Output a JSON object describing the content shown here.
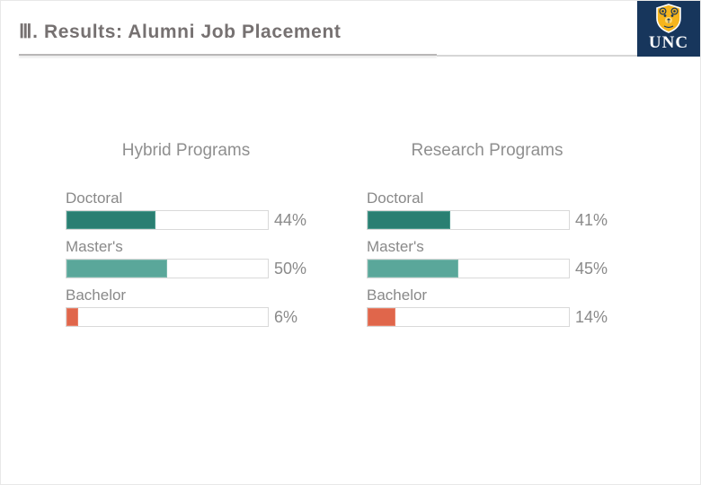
{
  "header": {
    "title": "Ⅲ. Results: Alumni Job Placement",
    "logo": {
      "wordmark": "UNC",
      "bear_icon": "unc-bear-shield-icon",
      "navy": "#17365c",
      "gold": "#f6b51c"
    }
  },
  "colors": {
    "doctoral_bar": "#2a7f72",
    "masters_bar": "#5aa79a",
    "bachelor_bar": "#e0664b",
    "label_text": "#898989",
    "title_text": "#767171",
    "underline": "#b9b7b7"
  },
  "chart_data": [
    {
      "type": "bar",
      "orientation": "horizontal",
      "title": "Hybrid Programs",
      "categories": [
        "Doctoral",
        "Master's",
        "Bachelor"
      ],
      "values": [
        44,
        50,
        6
      ],
      "value_labels": [
        "44%",
        "50%",
        "6%"
      ],
      "xlim": [
        0,
        100
      ],
      "grid": false,
      "legend": false
    },
    {
      "type": "bar",
      "orientation": "horizontal",
      "title": "Research Programs",
      "categories": [
        "Doctoral",
        "Master's",
        "Bachelor"
      ],
      "values": [
        41,
        45,
        14
      ],
      "value_labels": [
        "41%",
        "45%",
        "14%"
      ],
      "xlim": [
        0,
        100
      ],
      "grid": false,
      "legend": false
    }
  ]
}
